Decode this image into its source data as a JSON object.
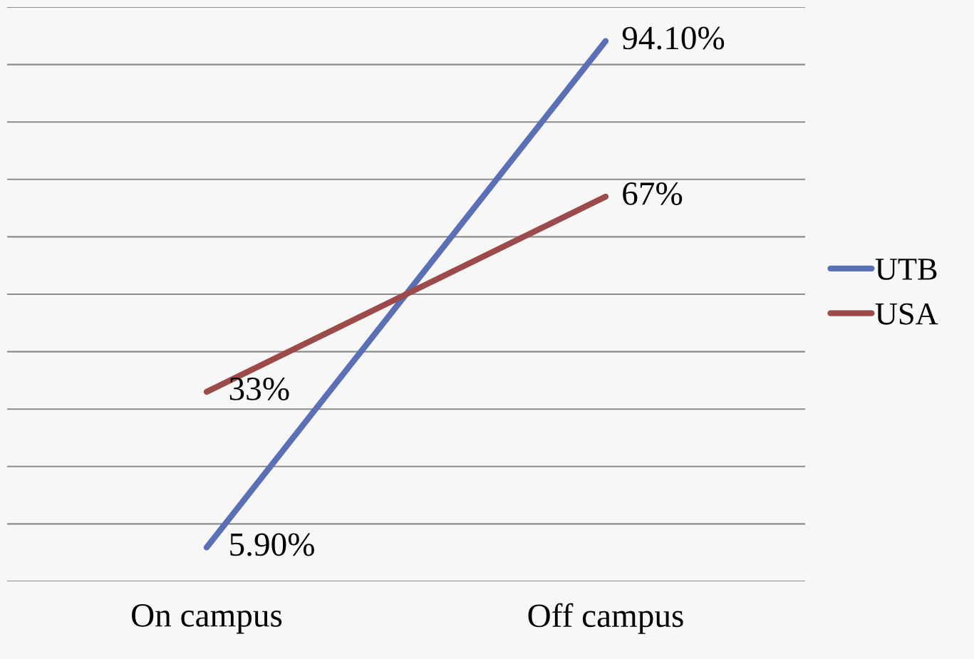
{
  "chart_data": {
    "type": "line",
    "categories": [
      "On campus",
      "Off campus"
    ],
    "series": [
      {
        "name": "UTB",
        "color": "#5b6fb6",
        "values": [
          5.9,
          94.1
        ],
        "value_labels": [
          "5.90%",
          "94.10%"
        ]
      },
      {
        "name": "USA",
        "color": "#9c4a4a",
        "values": [
          33,
          67
        ],
        "value_labels": [
          "33%",
          "67%"
        ]
      }
    ],
    "ylim": [
      0,
      100
    ],
    "yticks": [
      {
        "value": 0,
        "label": null
      },
      {
        "value": 10,
        "label": null
      },
      {
        "value": 20,
        "label": null
      },
      {
        "value": 30,
        "label": null
      },
      {
        "value": 40,
        "label": null
      },
      {
        "value": 50,
        "label": null
      },
      {
        "value": 60,
        "label": null
      },
      {
        "value": 70,
        "label": null
      },
      {
        "value": 80,
        "label": null
      },
      {
        "value": 90,
        "label": null
      },
      {
        "value": 100,
        "label": null
      }
    ],
    "grid": "y",
    "legend": "right",
    "tick_labels": "x",
    "marker": "none",
    "line_style": "solid"
  }
}
